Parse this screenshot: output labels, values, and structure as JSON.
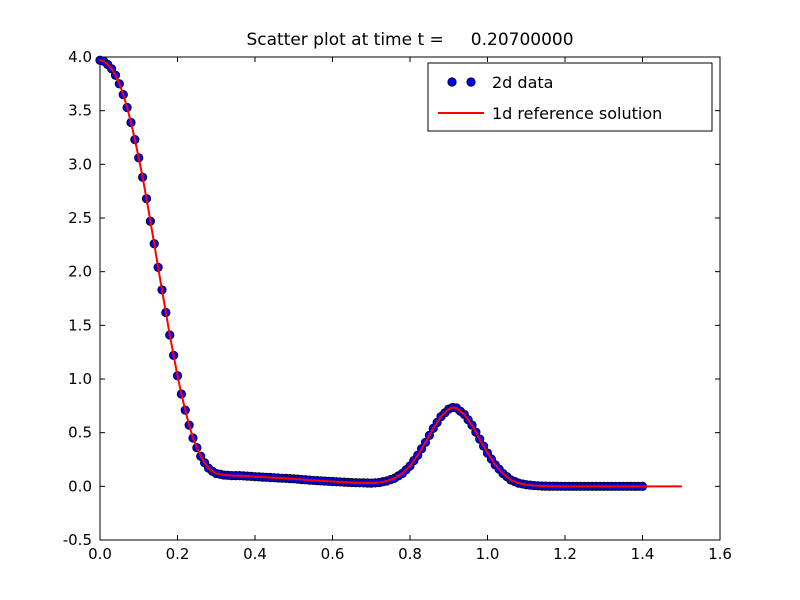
{
  "figure": {
    "background": "#ffffff"
  },
  "chart_data": {
    "type": "scatter",
    "title": "Scatter plot at time t =     0.20700000",
    "xlabel": "",
    "ylabel": "",
    "xlim": [
      0.0,
      1.6
    ],
    "ylim": [
      -0.5,
      4.0
    ],
    "xticks": [
      0.0,
      0.2,
      0.4,
      0.6,
      0.8,
      1.0,
      1.2,
      1.4,
      1.6
    ],
    "yticks": [
      -0.5,
      0.0,
      0.5,
      1.0,
      1.5,
      2.0,
      2.5,
      3.0,
      3.5,
      4.0
    ],
    "grid": false,
    "legend": {
      "position": "upper right",
      "entries": [
        "2d data",
        "1d reference solution"
      ]
    },
    "series": [
      {
        "name": "2d data",
        "type": "scatter",
        "color": "#0000ff",
        "edge_color": "#000000",
        "sampling": {
          "x_start": 0.0,
          "x_end": 1.4,
          "x_step": 0.01
        },
        "note": "dense markers lying on the 1d reference curve"
      },
      {
        "name": "1d reference solution",
        "type": "line",
        "color": "#ff0000",
        "x": [
          0.0,
          0.01,
          0.02,
          0.03,
          0.04,
          0.05,
          0.06,
          0.07,
          0.08,
          0.09,
          0.1,
          0.11,
          0.12,
          0.13,
          0.14,
          0.15,
          0.16,
          0.17,
          0.18,
          0.19,
          0.2,
          0.21,
          0.22,
          0.23,
          0.24,
          0.25,
          0.26,
          0.27,
          0.28,
          0.29,
          0.3,
          0.32,
          0.34,
          0.36,
          0.38,
          0.4,
          0.45,
          0.5,
          0.55,
          0.6,
          0.65,
          0.7,
          0.72,
          0.74,
          0.76,
          0.78,
          0.8,
          0.82,
          0.84,
          0.86,
          0.88,
          0.9,
          0.91,
          0.92,
          0.94,
          0.96,
          0.98,
          1.0,
          1.02,
          1.04,
          1.06,
          1.08,
          1.1,
          1.12,
          1.14,
          1.16,
          1.2,
          1.25,
          1.3,
          1.35,
          1.4,
          1.45,
          1.5
        ],
        "y": [
          3.97,
          3.96,
          3.93,
          3.89,
          3.83,
          3.75,
          3.65,
          3.53,
          3.39,
          3.23,
          3.06,
          2.88,
          2.68,
          2.47,
          2.26,
          2.04,
          1.83,
          1.62,
          1.41,
          1.22,
          1.03,
          0.86,
          0.71,
          0.57,
          0.45,
          0.36,
          0.28,
          0.22,
          0.17,
          0.14,
          0.12,
          0.105,
          0.1,
          0.1,
          0.095,
          0.09,
          0.08,
          0.07,
          0.055,
          0.045,
          0.035,
          0.03,
          0.035,
          0.05,
          0.075,
          0.12,
          0.19,
          0.29,
          0.41,
          0.54,
          0.65,
          0.72,
          0.735,
          0.73,
          0.67,
          0.57,
          0.44,
          0.31,
          0.2,
          0.12,
          0.06,
          0.03,
          0.015,
          0.007,
          0.003,
          0.001,
          0.0,
          0.0,
          0.0,
          0.0,
          0.0,
          0.0,
          0.0
        ]
      }
    ]
  }
}
